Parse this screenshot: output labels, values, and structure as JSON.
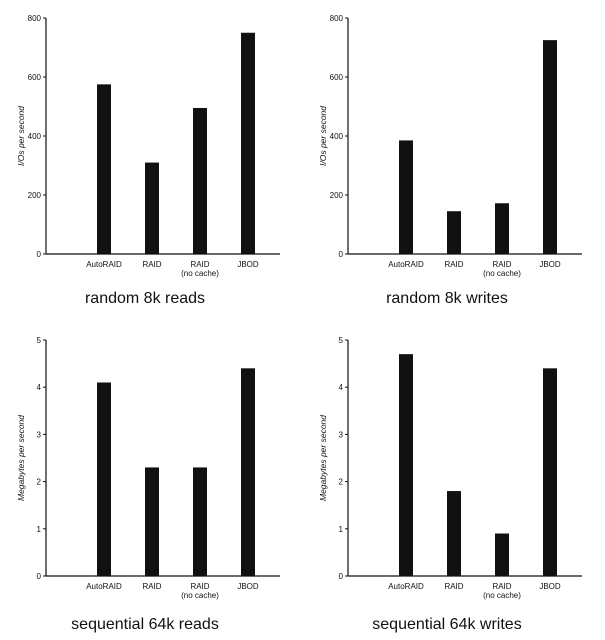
{
  "chart_data": [
    {
      "type": "bar",
      "title": "random 8k reads",
      "ylabel": "I/Os per second",
      "ylim": [
        0,
        800
      ],
      "yticks": [
        0,
        200,
        400,
        600,
        800
      ],
      "categories": [
        [
          "AutoRAID"
        ],
        [
          "RAID"
        ],
        [
          "RAID",
          "(no cache)"
        ],
        [
          "JBOD"
        ]
      ],
      "values": [
        575,
        310,
        495,
        750
      ]
    },
    {
      "type": "bar",
      "title": "random 8k writes",
      "ylabel": "I/Os per second",
      "ylim": [
        0,
        800
      ],
      "yticks": [
        0,
        200,
        400,
        600,
        800
      ],
      "categories": [
        [
          "AutoRAID"
        ],
        [
          "RAID"
        ],
        [
          "RAID",
          "(no cache)"
        ],
        [
          "JBOD"
        ]
      ],
      "values": [
        385,
        145,
        172,
        725
      ]
    },
    {
      "type": "bar",
      "title": "sequential 64k reads",
      "ylabel": "Megabytes per second",
      "ylim": [
        0,
        5
      ],
      "yticks": [
        0,
        1,
        2,
        3,
        4,
        5
      ],
      "categories": [
        [
          "AutoRAID"
        ],
        [
          "RAID"
        ],
        [
          "RAID",
          "(no cache)"
        ],
        [
          "JBOD"
        ]
      ],
      "values": [
        4.1,
        2.3,
        2.3,
        4.4
      ]
    },
    {
      "type": "bar",
      "title": "sequential 64k writes",
      "ylabel": "Megabytes per second",
      "ylim": [
        0,
        5
      ],
      "yticks": [
        0,
        1,
        2,
        3,
        4,
        5
      ],
      "categories": [
        [
          "AutoRAID"
        ],
        [
          "RAID"
        ],
        [
          "RAID",
          "(no cache)"
        ],
        [
          "JBOD"
        ]
      ],
      "values": [
        4.7,
        1.8,
        0.9,
        4.4
      ]
    }
  ]
}
